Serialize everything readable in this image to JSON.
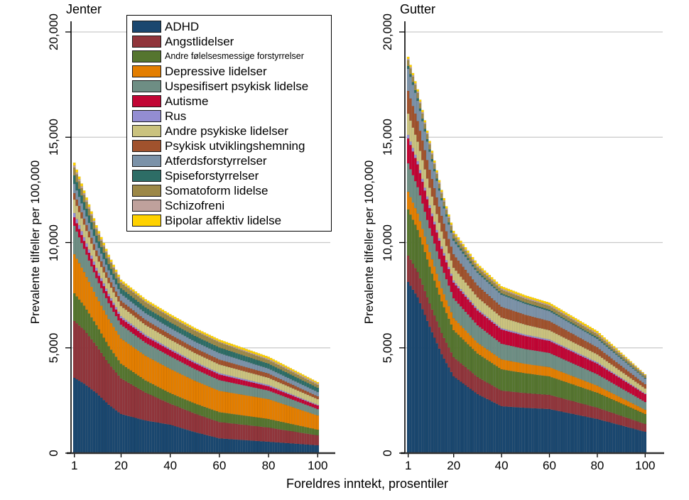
{
  "figure": {
    "background": "#ffffff",
    "xlabel": "Foreldres inntekt, prosentiler"
  },
  "panels": [
    {
      "key": "jenter",
      "title": "Jenter",
      "ylabel": "Prevalente tilfeller per 100,000"
    },
    {
      "key": "gutter",
      "title": "Gutter",
      "ylabel": "Prevalente tilfeller per 100,000"
    }
  ],
  "y_axis": {
    "tick_values": [
      0,
      5000,
      10000,
      15000,
      20000
    ],
    "tick_labels": [
      "0",
      "5,000",
      "10,000",
      "15,000",
      "20,000"
    ]
  },
  "x_axis": {
    "tick_values": [
      1,
      20,
      40,
      60,
      80,
      100
    ],
    "tick_labels": [
      "1",
      "20",
      "40",
      "60",
      "80",
      "100"
    ]
  },
  "legend": {
    "items": [
      {
        "label": "ADHD",
        "color": "#1a476f",
        "small": false
      },
      {
        "label": "Angstlidelser",
        "color": "#90353b",
        "small": false
      },
      {
        "label": "Andre følelsesmessige forstyrrelser",
        "color": "#55752f",
        "small": true
      },
      {
        "label": "Depressive lidelser",
        "color": "#e37e00",
        "small": false
      },
      {
        "label": "Uspesifisert psykisk lidelse",
        "color": "#6e8e84",
        "small": false
      },
      {
        "label": "Autisme",
        "color": "#c10534",
        "small": false
      },
      {
        "label": "Rus",
        "color": "#938dd2",
        "small": false
      },
      {
        "label": "Andre psykiske lidelser",
        "color": "#cac27e",
        "small": false
      },
      {
        "label": "Psykisk utviklingshemning",
        "color": "#a0522d",
        "small": false
      },
      {
        "label": "Atferdsforstyrrelser",
        "color": "#7b92a8",
        "small": false
      },
      {
        "label": "Spiseforstyrrelser",
        "color": "#2d6d66",
        "small": false
      },
      {
        "label": "Somatoform lidelse",
        "color": "#9c8847",
        "small": false
      },
      {
        "label": "Schizofreni",
        "color": "#bfa19c",
        "small": false
      },
      {
        "label": "Bipolar affektiv lidelse",
        "color": "#ffd200",
        "small": false
      }
    ]
  },
  "chart_data": {
    "type": "bar",
    "stacked": true,
    "orientation": "vertical",
    "title": "",
    "xlabel": "Foreldres inntekt, prosentiler",
    "ylabel": "Prevalente tilfeller per 100,000",
    "xlim": [
      1,
      100
    ],
    "ylim": [
      0,
      20000
    ],
    "grid": true,
    "gridline_values": [
      5000,
      10000,
      15000,
      20000
    ],
    "legend_position": "top-of-left-panel",
    "x_unit": "foreldres inntektspersentil (1-100)",
    "y_unit": "prevalente tilfeller per 100,000",
    "note": "Values per 100,000; read at control percentiles, linearly interpolated for the 100 stacked bars per panel. Stacking order bottom-to-top follows series order.",
    "control_percentiles": [
      1,
      5,
      10,
      15,
      20,
      30,
      40,
      50,
      60,
      80,
      100
    ],
    "series": [
      {
        "name": "ADHD",
        "color": "#1a476f",
        "jenter": [
          3575,
          3300,
          2850,
          2300,
          1855,
          1550,
          1350,
          1000,
          700,
          540,
          371
        ],
        "gutter": [
          8129,
          7400,
          6000,
          4700,
          3643,
          2800,
          2226,
          2150,
          2091,
          1619,
          1012
        ]
      },
      {
        "name": "Angstlidelser",
        "color": "#90353b",
        "jenter": [
          2700,
          2550,
          2250,
          1950,
          1690,
          1320,
          1000,
          880,
          776,
          675,
          472
        ],
        "gutter": [
          1248,
          1200,
          1100,
          1000,
          911,
          810,
          742,
          700,
          675,
          540,
          371
        ]
      },
      {
        "name": "Andre følelsesmessige forstyrrelser",
        "color": "#55752f",
        "jenter": [
          1315,
          1150,
          980,
          830,
          700,
          580,
          500,
          480,
          472,
          405,
          270
        ],
        "gutter": [
          2192,
          2000,
          1750,
          1500,
          1282,
          1120,
          1012,
          940,
          877,
          708,
          472
        ]
      },
      {
        "name": "Depressive lidelser",
        "color": "#e37e00",
        "jenter": [
          1855,
          1600,
          1350,
          1280,
          1200,
          1170,
          1150,
          1080,
          1012,
          944,
          675
        ],
        "gutter": [
          843,
          780,
          700,
          630,
          573,
          510,
          472,
          450,
          438,
          337,
          202
        ]
      },
      {
        "name": "Uspesifisert psykisk lidelse",
        "color": "#6e8e84",
        "jenter": [
          1349,
          1100,
          880,
          760,
          650,
          620,
          600,
          550,
          506,
          405,
          304
        ],
        "gutter": [
          1349,
          1250,
          1130,
          1030,
          944,
          830,
          742,
          700,
          675,
          540,
          371
        ]
      },
      {
        "name": "Autisme",
        "color": "#c10534",
        "jenter": [
          405,
          380,
          350,
          330,
          310,
          300,
          290,
          280,
          270,
          202,
          169
        ],
        "gutter": [
          1180,
          1080,
          960,
          840,
          742,
          700,
          675,
          620,
          573,
          506,
          371
        ]
      },
      {
        "name": "Rus",
        "color": "#938dd2",
        "jenter": [
          200,
          170,
          140,
          115,
          100,
          85,
          75,
          70,
          67,
          67,
          34
        ],
        "gutter": [
          169,
          150,
          130,
          115,
          101,
          80,
          67,
          67,
          67,
          67,
          34
        ]
      },
      {
        "name": "Andre psykiske lidelser",
        "color": "#cac27e",
        "jenter": [
          640,
          600,
          550,
          510,
          480,
          455,
          430,
          415,
          405,
          337,
          270
        ],
        "gutter": [
          1012,
          930,
          830,
          710,
          607,
          550,
          506,
          470,
          438,
          371,
          236
        ]
      },
      {
        "name": "Psykisk utviklingshemning",
        "color": "#a0522d",
        "jenter": [
          305,
          290,
          275,
          260,
          250,
          245,
          240,
          238,
          236,
          202,
          135
        ],
        "gutter": [
          1079,
          980,
          860,
          740,
          641,
          560,
          506,
          470,
          438,
          337,
          202
        ]
      },
      {
        "name": "Atferdsforstyrrelser",
        "color": "#7b92a8",
        "jenter": [
          440,
          410,
          375,
          350,
          330,
          320,
          310,
          307,
          304,
          236,
          202
        ],
        "gutter": [
          1046,
          960,
          850,
          740,
          641,
          600,
          573,
          520,
          472,
          405,
          270
        ]
      },
      {
        "name": "Spiseforstyrrelser",
        "color": "#2d6d66",
        "jenter": [
          405,
          370,
          330,
          295,
          270,
          270,
          270,
          270,
          270,
          236,
          202
        ],
        "gutter": [
          135,
          125,
          115,
          108,
          101,
          80,
          67,
          67,
          67,
          67,
          34
        ]
      },
      {
        "name": "Somatoform lidelse",
        "color": "#9c8847",
        "jenter": [
          370,
          340,
          305,
          275,
          250,
          245,
          240,
          238,
          236,
          169,
          135
        ],
        "gutter": [
          270,
          250,
          230,
          215,
          202,
          185,
          169,
          169,
          169,
          135,
          101
        ]
      },
      {
        "name": "Schizofreni",
        "color": "#bfa19c",
        "jenter": [
          100,
          85,
          70,
          58,
          50,
          47,
          45,
          42,
          40,
          60,
          65
        ],
        "gutter": [
          67,
          67,
          67,
          67,
          67,
          67,
          67,
          67,
          67,
          67,
          34
        ]
      },
      {
        "name": "Bipolar affektiv lidelse",
        "color": "#ffd200",
        "jenter": [
          135,
          125,
          115,
          105,
          100,
          100,
          100,
          100,
          100,
          100,
          67
        ],
        "gutter": [
          101,
          101,
          101,
          101,
          101,
          101,
          101,
          101,
          101,
          101,
          34
        ]
      }
    ]
  }
}
